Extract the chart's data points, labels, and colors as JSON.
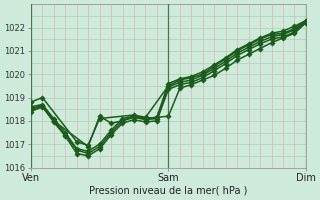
{
  "background_color": "#ceeadb",
  "grid_color_h": "#aacfbb",
  "grid_color_v": "#e8b0b0",
  "line_color": "#1a5c1a",
  "markersize": 2.8,
  "linewidth": 1.1,
  "xlabel": "Pression niveau de la mer( hPa )",
  "ylim": [
    1016,
    1023.0
  ],
  "yticks": [
    1016,
    1017,
    1018,
    1019,
    1020,
    1021,
    1022
  ],
  "xtick_labels": [
    "Ven",
    "Sam",
    "Dim"
  ],
  "xtick_positions": [
    0.0,
    0.5,
    1.0
  ],
  "vline_x": [
    0.0,
    0.5,
    1.0
  ],
  "n_cols": 24,
  "series": [
    {
      "x": [
        0.0,
        0.042,
        0.083,
        0.125,
        0.167,
        0.208,
        0.25,
        0.292,
        0.333,
        0.375,
        0.417,
        0.458,
        0.5,
        0.542,
        0.583,
        0.625,
        0.667,
        0.708,
        0.75,
        0.792,
        0.833,
        0.875,
        0.917,
        0.958,
        1.0
      ],
      "y": [
        1018.6,
        1018.7,
        1018.1,
        1017.5,
        1016.8,
        1016.7,
        1017.0,
        1017.6,
        1018.1,
        1018.2,
        1018.1,
        1018.15,
        1019.6,
        1019.8,
        1019.9,
        1020.1,
        1020.4,
        1020.7,
        1021.05,
        1021.3,
        1021.55,
        1021.75,
        1021.85,
        1022.05,
        1022.3
      ]
    },
    {
      "x": [
        0.0,
        0.042,
        0.083,
        0.125,
        0.167,
        0.208,
        0.25,
        0.292,
        0.333,
        0.375,
        0.417,
        0.458,
        0.5,
        0.542,
        0.583,
        0.625,
        0.667,
        0.708,
        0.75,
        0.792,
        0.833,
        0.875,
        0.917,
        0.958,
        1.0
      ],
      "y": [
        1018.4,
        1018.6,
        1017.95,
        1017.35,
        1016.6,
        1016.5,
        1016.8,
        1017.4,
        1017.9,
        1018.05,
        1017.95,
        1018.0,
        1019.35,
        1019.55,
        1019.65,
        1019.85,
        1020.15,
        1020.45,
        1020.8,
        1021.05,
        1021.3,
        1021.5,
        1021.6,
        1021.8,
        1022.25
      ]
    },
    {
      "x": [
        0.0,
        0.042,
        0.167,
        0.208,
        0.25,
        0.375,
        0.417,
        0.5,
        0.542,
        0.583,
        0.625,
        0.667,
        0.708,
        0.75,
        0.792,
        0.833,
        0.875,
        0.917,
        0.958,
        1.0
      ],
      "y": [
        1018.8,
        1019.0,
        1017.1,
        1016.95,
        1018.1,
        1018.25,
        1018.15,
        1019.5,
        1019.75,
        1019.85,
        1020.0,
        1020.35,
        1020.65,
        1021.0,
        1021.25,
        1021.5,
        1021.7,
        1021.75,
        1021.95,
        1022.3
      ]
    },
    {
      "x": [
        0.0,
        0.042,
        0.083,
        0.125,
        0.167,
        0.208,
        0.25,
        0.292,
        0.333,
        0.375,
        0.417,
        0.458,
        0.5,
        0.542,
        0.583,
        0.625,
        0.667,
        0.708,
        0.75,
        0.792,
        0.833,
        0.875,
        0.917,
        0.958,
        1.0
      ],
      "y": [
        1018.5,
        1018.65,
        1018.0,
        1017.4,
        1016.75,
        1016.6,
        1016.9,
        1017.5,
        1018.0,
        1018.15,
        1018.05,
        1018.1,
        1019.45,
        1019.65,
        1019.75,
        1019.95,
        1020.25,
        1020.55,
        1020.9,
        1021.15,
        1021.4,
        1021.6,
        1021.7,
        1021.9,
        1022.25
      ]
    },
    {
      "x": [
        0.0,
        0.042,
        0.083,
        0.208,
        0.25,
        0.292,
        0.333,
        0.375,
        0.417,
        0.458,
        0.5,
        0.542,
        0.583,
        0.625,
        0.667,
        0.708,
        0.75,
        0.792,
        0.833,
        0.875,
        0.917,
        0.958,
        1.0
      ],
      "y": [
        1018.5,
        1018.65,
        1018.0,
        1016.9,
        1018.2,
        1017.9,
        1018.0,
        1018.2,
        1018.1,
        1018.15,
        1018.2,
        1019.4,
        1019.55,
        1019.75,
        1019.95,
        1020.25,
        1020.6,
        1020.85,
        1021.1,
        1021.35,
        1021.55,
        1021.75,
        1022.2
      ]
    }
  ]
}
